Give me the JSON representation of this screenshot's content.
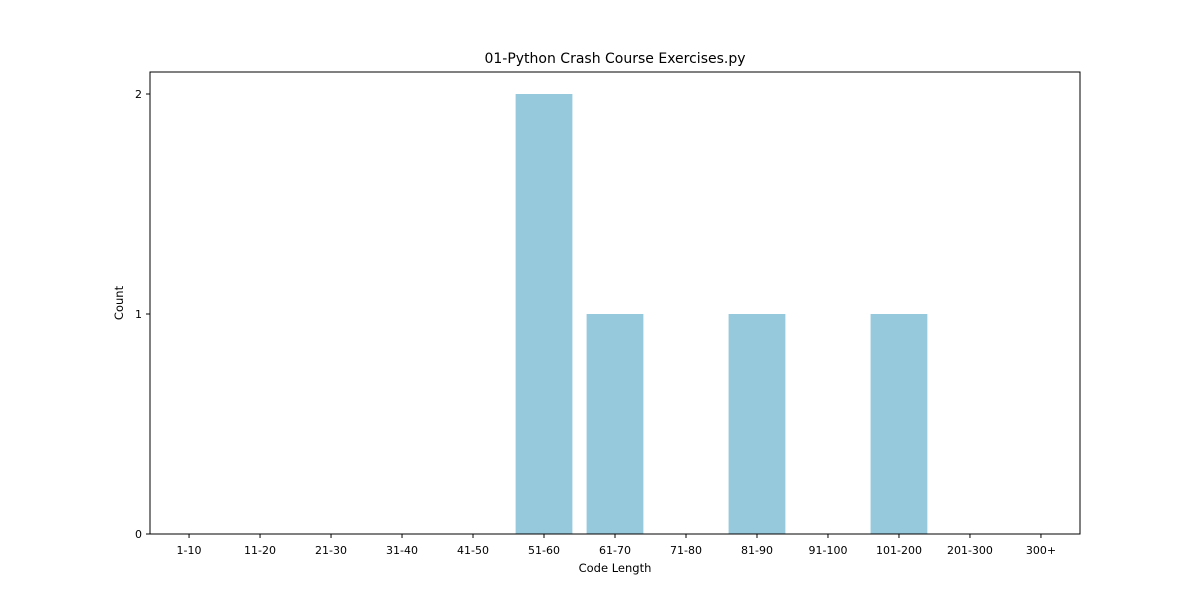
{
  "chart_data": {
    "type": "bar",
    "title": "01-Python Crash Course Exercises.py",
    "xlabel": "Code Length",
    "ylabel": "Count",
    "categories": [
      "1-10",
      "11-20",
      "21-30",
      "31-40",
      "41-50",
      "51-60",
      "61-70",
      "71-80",
      "81-90",
      "91-100",
      "101-200",
      "201-300",
      "300+"
    ],
    "values": [
      0,
      0,
      0,
      0,
      0,
      2,
      1,
      0,
      1,
      0,
      1,
      0,
      0
    ],
    "ylim": [
      0,
      2.1
    ],
    "yticks": [
      "0",
      "1",
      "2"
    ],
    "grid": false,
    "bar_color": "#96c9dc"
  }
}
